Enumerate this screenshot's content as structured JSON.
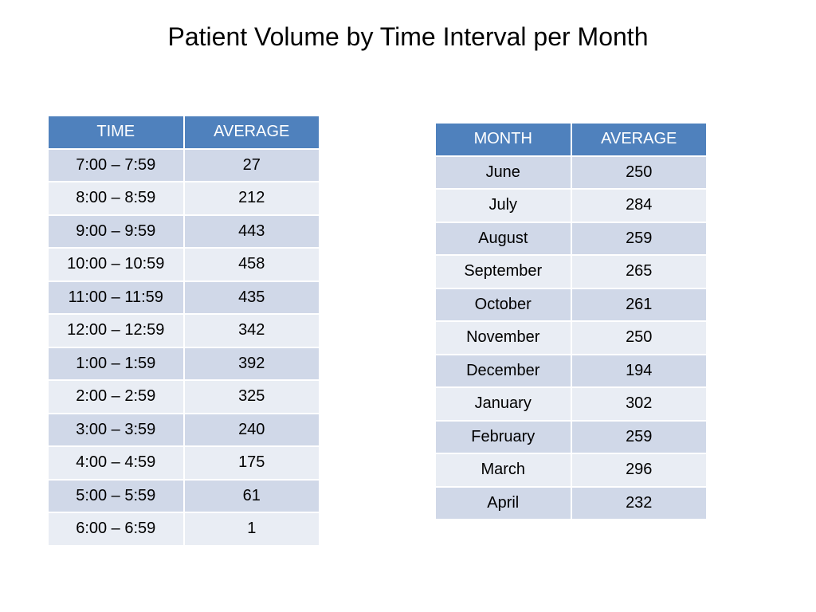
{
  "title": "Patient Volume by Time Interval per Month",
  "time_table": {
    "headers": [
      "TIME",
      "AVERAGE"
    ],
    "rows": [
      {
        "label": "7:00 – 7:59",
        "value": "27"
      },
      {
        "label": "8:00 – 8:59",
        "value": "212"
      },
      {
        "label": "9:00 – 9:59",
        "value": "443"
      },
      {
        "label": "10:00 – 10:59",
        "value": "458"
      },
      {
        "label": "11:00 – 11:59",
        "value": "435"
      },
      {
        "label": "12:00 – 12:59",
        "value": "342"
      },
      {
        "label": "1:00 – 1:59",
        "value": "392"
      },
      {
        "label": "2:00 – 2:59",
        "value": "325"
      },
      {
        "label": "3:00 – 3:59",
        "value": "240"
      },
      {
        "label": "4:00 – 4:59",
        "value": "175"
      },
      {
        "label": "5:00 – 5:59",
        "value": "61"
      },
      {
        "label": "6:00 – 6:59",
        "value": "1"
      }
    ]
  },
  "month_table": {
    "headers": [
      "MONTH",
      "AVERAGE"
    ],
    "rows": [
      {
        "label": "June",
        "value": "250"
      },
      {
        "label": "July",
        "value": "284"
      },
      {
        "label": "August",
        "value": "259"
      },
      {
        "label": "September",
        "value": "265"
      },
      {
        "label": "October",
        "value": "261"
      },
      {
        "label": "November",
        "value": "250"
      },
      {
        "label": "December",
        "value": "194"
      },
      {
        "label": "January",
        "value": "302"
      },
      {
        "label": "February",
        "value": "259"
      },
      {
        "label": "March",
        "value": "296"
      },
      {
        "label": "April",
        "value": "232"
      }
    ]
  },
  "colors": {
    "header": "#4f81bd",
    "row_odd": "#d0d8e8",
    "row_even": "#e9edf4"
  }
}
